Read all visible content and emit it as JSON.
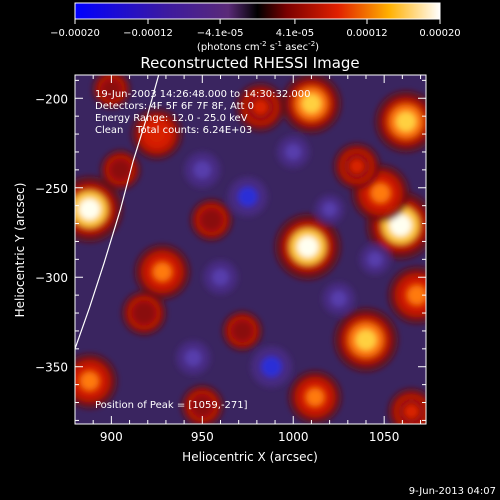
{
  "chart_data": {
    "type": "heatmap",
    "title": "Reconstructed RHESSI Image",
    "xlabel": "Heliocentric X (arcsec)",
    "ylabel": "Heliocentric Y (arcsec)",
    "xlim": [
      880,
      1073
    ],
    "ylim": [
      -382,
      -187
    ],
    "x_ticks": [
      "900",
      "950",
      "1000",
      "1050"
    ],
    "x_tick_values": [
      900,
      950,
      1000,
      1050
    ],
    "y_ticks": [
      "-200",
      "-250",
      "-300",
      "-350"
    ],
    "y_tick_values": [
      -200,
      -250,
      -300,
      -350
    ],
    "colorbar": {
      "range": [
        -0.0002,
        0.0002
      ],
      "tick_labels": [
        "-0.00020",
        "-0.00012",
        "-4.1e-05",
        "4.1e-05",
        "0.00012",
        "0.00020"
      ],
      "tick_values": [
        -0.0002,
        -0.00012,
        -4.1e-05,
        4.1e-05,
        0.00012,
        0.0002
      ],
      "unit_prefix": "(photons cm",
      "unit_exp1": "-2",
      "unit_mid": " s",
      "unit_exp2": "-1",
      "unit_mid2": " asec",
      "unit_exp3": "-2",
      "unit_suffix": ")"
    },
    "annotations": [
      "19-Jun-2003 14:26:48.000 to 14:30:32.000",
      "Detectors: 4F 5F 6F 7F 8F, Att 0",
      "Energy Range: 12.0 - 25.0 keV",
      "Clean    Total counts: 6.24E+03"
    ],
    "peak_label": "Position of Peak = [1059,-271]",
    "limb": [
      [
        880,
        -340
      ],
      [
        888,
        -317
      ],
      [
        896,
        -292
      ],
      [
        905,
        -262
      ],
      [
        912,
        -235
      ],
      [
        920,
        -209
      ],
      [
        926,
        -187
      ]
    ],
    "sources": [
      {
        "x": 1059,
        "y": -271,
        "v": 0.0002
      },
      {
        "x": 1008,
        "y": -283,
        "v": 0.00019
      },
      {
        "x": 888,
        "y": -262,
        "v": 0.00019
      },
      {
        "x": 1040,
        "y": -335,
        "v": 0.00018
      },
      {
        "x": 1062,
        "y": -213,
        "v": 0.00017
      },
      {
        "x": 1048,
        "y": -253,
        "v": 0.00015
      },
      {
        "x": 1010,
        "y": -203,
        "v": 0.00016
      },
      {
        "x": 982,
        "y": -205,
        "v": 0.00011
      },
      {
        "x": 1068,
        "y": -310,
        "v": 0.00015
      },
      {
        "x": 928,
        "y": -297,
        "v": 0.00014
      },
      {
        "x": 1012,
        "y": -367,
        "v": 0.00013
      },
      {
        "x": 888,
        "y": -358,
        "v": 0.00014
      },
      {
        "x": 925,
        "y": -220,
        "v": 0.00012
      },
      {
        "x": 1035,
        "y": -238,
        "v": 0.0001
      },
      {
        "x": 955,
        "y": -268,
        "v": 8e-05
      },
      {
        "x": 918,
        "y": -320,
        "v": 9e-05
      },
      {
        "x": 972,
        "y": -330,
        "v": 7e-05
      },
      {
        "x": 950,
        "y": -372,
        "v": 8e-05
      },
      {
        "x": 1065,
        "y": -375,
        "v": 0.0001
      },
      {
        "x": 905,
        "y": -240,
        "v": 7e-05
      },
      {
        "x": 900,
        "y": -195,
        "v": 6e-05
      },
      {
        "x": 975,
        "y": -255,
        "v": -0.00012
      },
      {
        "x": 950,
        "y": -240,
        "v": -0.0001
      },
      {
        "x": 988,
        "y": -350,
        "v": -0.00013
      },
      {
        "x": 960,
        "y": -300,
        "v": -9e-05
      },
      {
        "x": 1025,
        "y": -312,
        "v": -8e-05
      },
      {
        "x": 1000,
        "y": -230,
        "v": -8e-05
      },
      {
        "x": 945,
        "y": -345,
        "v": -9e-05
      },
      {
        "x": 1045,
        "y": -290,
        "v": -7e-05
      },
      {
        "x": 1020,
        "y": -262,
        "v": -6e-05
      }
    ]
  },
  "footer_timestamp": "9-Jun-2013 04:07"
}
